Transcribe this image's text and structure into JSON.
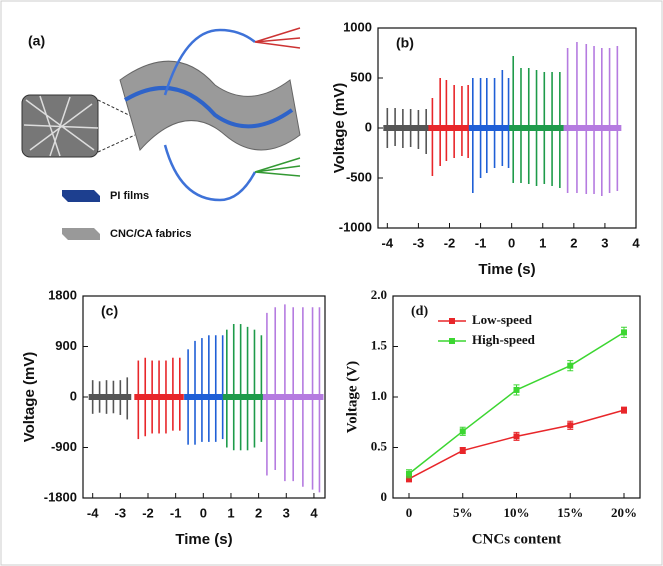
{
  "diagram": {
    "panel": "(a)",
    "legend": [
      "PI films",
      "CNC/CA fabrics"
    ]
  },
  "chart_data": [
    {
      "type": "spikes",
      "panel": "(b)",
      "xlabel": "Time (s)",
      "ylabel": "Voltage (mV)",
      "xlim": [
        -4.3,
        4
      ],
      "xticks": [
        -4,
        -3,
        -2,
        -1,
        0,
        1,
        2,
        3,
        4
      ],
      "ylim": [
        -1000,
        1000
      ],
      "yticks": [
        -1000,
        -500,
        0,
        500,
        1000
      ],
      "series": [
        {
          "color": "#555555",
          "x": [
            -4.0,
            -3.75,
            -3.5,
            -3.25,
            -3.0,
            -2.75
          ],
          "values": [
            200,
            200,
            190,
            190,
            180,
            190
          ],
          "lows": [
            -200,
            -180,
            -200,
            -190,
            -210,
            -260
          ]
        },
        {
          "color": "#e8262a",
          "x": [
            -2.55,
            -2.3,
            -2.1,
            -1.85,
            -1.6,
            -1.4
          ],
          "values": [
            300,
            500,
            480,
            430,
            420,
            430
          ],
          "lows": [
            -480,
            -380,
            -330,
            -300,
            -280,
            -300
          ]
        },
        {
          "color": "#1f5fd6",
          "x": [
            -1.25,
            -1.0,
            -0.8,
            -0.55,
            -0.3,
            -0.1
          ],
          "values": [
            500,
            500,
            500,
            500,
            580,
            500
          ],
          "lows": [
            -650,
            -500,
            -450,
            -400,
            -380,
            -400
          ]
        },
        {
          "color": "#1e9b4a",
          "x": [
            0.05,
            0.3,
            0.55,
            0.8,
            1.05,
            1.3,
            1.55
          ],
          "values": [
            720,
            600,
            600,
            580,
            560,
            560,
            560
          ],
          "lows": [
            -550,
            -550,
            -560,
            -580,
            -560,
            -580,
            -600
          ]
        },
        {
          "color": "#b57be0",
          "x": [
            1.8,
            2.1,
            2.4,
            2.65,
            2.9,
            3.15,
            3.4
          ],
          "values": [
            800,
            860,
            840,
            820,
            800,
            800,
            820
          ],
          "lows": [
            -650,
            -650,
            -660,
            -660,
            -680,
            -650,
            -630
          ]
        }
      ]
    },
    {
      "type": "spikes",
      "panel": "(c)",
      "xlabel": "Time (s)",
      "ylabel": "Voltage (mV)",
      "xlim": [
        -4.35,
        4.4
      ],
      "xticks": [
        -4,
        -3,
        -2,
        -1,
        0,
        1,
        2,
        3,
        4
      ],
      "ylim": [
        -1800,
        1800
      ],
      "yticks": [
        -1800,
        -900,
        0,
        900,
        1800
      ],
      "series": [
        {
          "color": "#555555",
          "x": [
            -4.0,
            -3.75,
            -3.5,
            -3.25,
            -3.0,
            -2.75
          ],
          "values": [
            300,
            280,
            300,
            290,
            300,
            350
          ],
          "lows": [
            -300,
            -280,
            -300,
            -290,
            -320,
            -400
          ]
        },
        {
          "color": "#e8262a",
          "x": [
            -2.35,
            -2.1,
            -1.85,
            -1.6,
            -1.35,
            -1.1,
            -0.85
          ],
          "values": [
            650,
            700,
            650,
            650,
            650,
            700,
            700
          ],
          "lows": [
            -750,
            -700,
            -650,
            -650,
            -650,
            -600,
            -600
          ]
        },
        {
          "color": "#1f5fd6",
          "x": [
            -0.55,
            -0.3,
            -0.05,
            0.2,
            0.45,
            0.7
          ],
          "values": [
            850,
            1000,
            1050,
            1100,
            1100,
            1100
          ],
          "lows": [
            -850,
            -850,
            -800,
            -800,
            -800,
            -750
          ]
        },
        {
          "color": "#1e9b4a",
          "x": [
            0.85,
            1.1,
            1.35,
            1.6,
            1.85,
            2.1
          ],
          "values": [
            1200,
            1300,
            1300,
            1250,
            1200,
            1100
          ],
          "lows": [
            -900,
            -950,
            -950,
            -950,
            -900,
            -800
          ]
        },
        {
          "color": "#b57be0",
          "x": [
            2.3,
            2.6,
            2.95,
            3.25,
            3.6,
            3.95,
            4.2
          ],
          "values": [
            1500,
            1600,
            1650,
            1600,
            1600,
            1600,
            1600
          ],
          "lows": [
            -1400,
            -1300,
            -1500,
            -1500,
            -1600,
            -1650,
            -1700
          ]
        }
      ]
    },
    {
      "type": "line",
      "panel": "(d)",
      "xlabel": "CNCs content",
      "ylabel": "Voltage (V)",
      "categories": [
        "0",
        "5%",
        "10%",
        "15%",
        "20%"
      ],
      "ylim": [
        0,
        2
      ],
      "yticks": [
        {
          "value": 0,
          "label": "0"
        },
        {
          "value": 0.5,
          "label": "0.5"
        },
        {
          "value": 1,
          "label": "1.0"
        },
        {
          "value": 1.5,
          "label": "1.5"
        },
        {
          "value": 2,
          "label": "2.0"
        }
      ],
      "legend": "top-left",
      "series": [
        {
          "name": "Low-speed",
          "color": "#e8262a",
          "values": [
            0.19,
            0.47,
            0.61,
            0.72,
            0.87
          ],
          "errors": [
            0.03,
            0.03,
            0.04,
            0.04,
            0.03
          ]
        },
        {
          "name": "High-speed",
          "color": "#3cd631",
          "values": [
            0.24,
            0.66,
            1.07,
            1.31,
            1.64
          ],
          "errors": [
            0.04,
            0.04,
            0.05,
            0.05,
            0.05
          ]
        }
      ]
    }
  ]
}
